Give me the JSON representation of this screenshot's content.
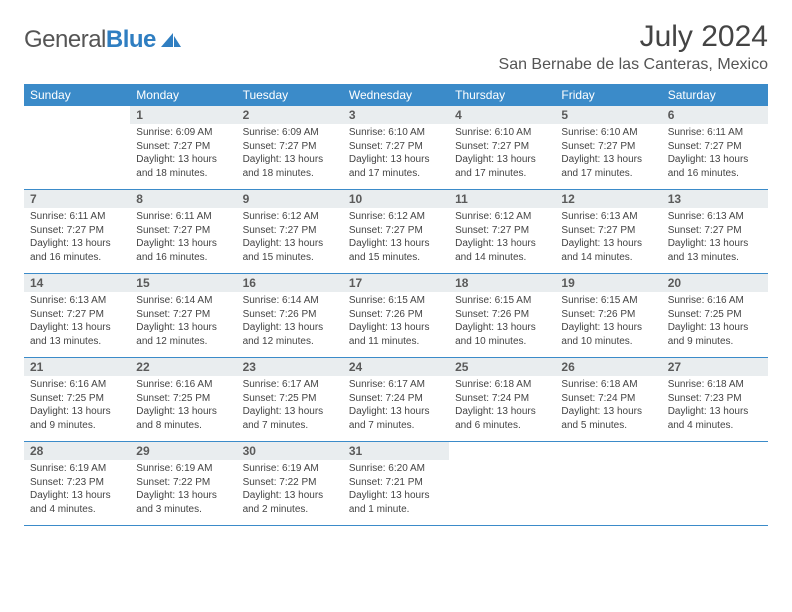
{
  "logo": {
    "part1": "General",
    "part2": "Blue"
  },
  "title": "July 2024",
  "location": "San Bernabe de las Canteras, Mexico",
  "colors": {
    "header_bg": "#3b8bc9",
    "header_text": "#ffffff",
    "daynum_bg": "#e9edef",
    "border": "#3b8bc9",
    "logo_blue": "#2f7ec1",
    "body_bg": "#ffffff",
    "text": "#444444"
  },
  "weekdays": [
    "Sunday",
    "Monday",
    "Tuesday",
    "Wednesday",
    "Thursday",
    "Friday",
    "Saturday"
  ],
  "first_weekday_index": 1,
  "days": [
    {
      "n": 1,
      "sunrise": "6:09 AM",
      "sunset": "7:27 PM",
      "daylight": "13 hours and 18 minutes."
    },
    {
      "n": 2,
      "sunrise": "6:09 AM",
      "sunset": "7:27 PM",
      "daylight": "13 hours and 18 minutes."
    },
    {
      "n": 3,
      "sunrise": "6:10 AM",
      "sunset": "7:27 PM",
      "daylight": "13 hours and 17 minutes."
    },
    {
      "n": 4,
      "sunrise": "6:10 AM",
      "sunset": "7:27 PM",
      "daylight": "13 hours and 17 minutes."
    },
    {
      "n": 5,
      "sunrise": "6:10 AM",
      "sunset": "7:27 PM",
      "daylight": "13 hours and 17 minutes."
    },
    {
      "n": 6,
      "sunrise": "6:11 AM",
      "sunset": "7:27 PM",
      "daylight": "13 hours and 16 minutes."
    },
    {
      "n": 7,
      "sunrise": "6:11 AM",
      "sunset": "7:27 PM",
      "daylight": "13 hours and 16 minutes."
    },
    {
      "n": 8,
      "sunrise": "6:11 AM",
      "sunset": "7:27 PM",
      "daylight": "13 hours and 16 minutes."
    },
    {
      "n": 9,
      "sunrise": "6:12 AM",
      "sunset": "7:27 PM",
      "daylight": "13 hours and 15 minutes."
    },
    {
      "n": 10,
      "sunrise": "6:12 AM",
      "sunset": "7:27 PM",
      "daylight": "13 hours and 15 minutes."
    },
    {
      "n": 11,
      "sunrise": "6:12 AM",
      "sunset": "7:27 PM",
      "daylight": "13 hours and 14 minutes."
    },
    {
      "n": 12,
      "sunrise": "6:13 AM",
      "sunset": "7:27 PM",
      "daylight": "13 hours and 14 minutes."
    },
    {
      "n": 13,
      "sunrise": "6:13 AM",
      "sunset": "7:27 PM",
      "daylight": "13 hours and 13 minutes."
    },
    {
      "n": 14,
      "sunrise": "6:13 AM",
      "sunset": "7:27 PM",
      "daylight": "13 hours and 13 minutes."
    },
    {
      "n": 15,
      "sunrise": "6:14 AM",
      "sunset": "7:27 PM",
      "daylight": "13 hours and 12 minutes."
    },
    {
      "n": 16,
      "sunrise": "6:14 AM",
      "sunset": "7:26 PM",
      "daylight": "13 hours and 12 minutes."
    },
    {
      "n": 17,
      "sunrise": "6:15 AM",
      "sunset": "7:26 PM",
      "daylight": "13 hours and 11 minutes."
    },
    {
      "n": 18,
      "sunrise": "6:15 AM",
      "sunset": "7:26 PM",
      "daylight": "13 hours and 10 minutes."
    },
    {
      "n": 19,
      "sunrise": "6:15 AM",
      "sunset": "7:26 PM",
      "daylight": "13 hours and 10 minutes."
    },
    {
      "n": 20,
      "sunrise": "6:16 AM",
      "sunset": "7:25 PM",
      "daylight": "13 hours and 9 minutes."
    },
    {
      "n": 21,
      "sunrise": "6:16 AM",
      "sunset": "7:25 PM",
      "daylight": "13 hours and 9 minutes."
    },
    {
      "n": 22,
      "sunrise": "6:16 AM",
      "sunset": "7:25 PM",
      "daylight": "13 hours and 8 minutes."
    },
    {
      "n": 23,
      "sunrise": "6:17 AM",
      "sunset": "7:25 PM",
      "daylight": "13 hours and 7 minutes."
    },
    {
      "n": 24,
      "sunrise": "6:17 AM",
      "sunset": "7:24 PM",
      "daylight": "13 hours and 7 minutes."
    },
    {
      "n": 25,
      "sunrise": "6:18 AM",
      "sunset": "7:24 PM",
      "daylight": "13 hours and 6 minutes."
    },
    {
      "n": 26,
      "sunrise": "6:18 AM",
      "sunset": "7:24 PM",
      "daylight": "13 hours and 5 minutes."
    },
    {
      "n": 27,
      "sunrise": "6:18 AM",
      "sunset": "7:23 PM",
      "daylight": "13 hours and 4 minutes."
    },
    {
      "n": 28,
      "sunrise": "6:19 AM",
      "sunset": "7:23 PM",
      "daylight": "13 hours and 4 minutes."
    },
    {
      "n": 29,
      "sunrise": "6:19 AM",
      "sunset": "7:22 PM",
      "daylight": "13 hours and 3 minutes."
    },
    {
      "n": 30,
      "sunrise": "6:19 AM",
      "sunset": "7:22 PM",
      "daylight": "13 hours and 2 minutes."
    },
    {
      "n": 31,
      "sunrise": "6:20 AM",
      "sunset": "7:21 PM",
      "daylight": "13 hours and 1 minute."
    }
  ],
  "labels": {
    "sunrise": "Sunrise:",
    "sunset": "Sunset:",
    "daylight": "Daylight:"
  }
}
